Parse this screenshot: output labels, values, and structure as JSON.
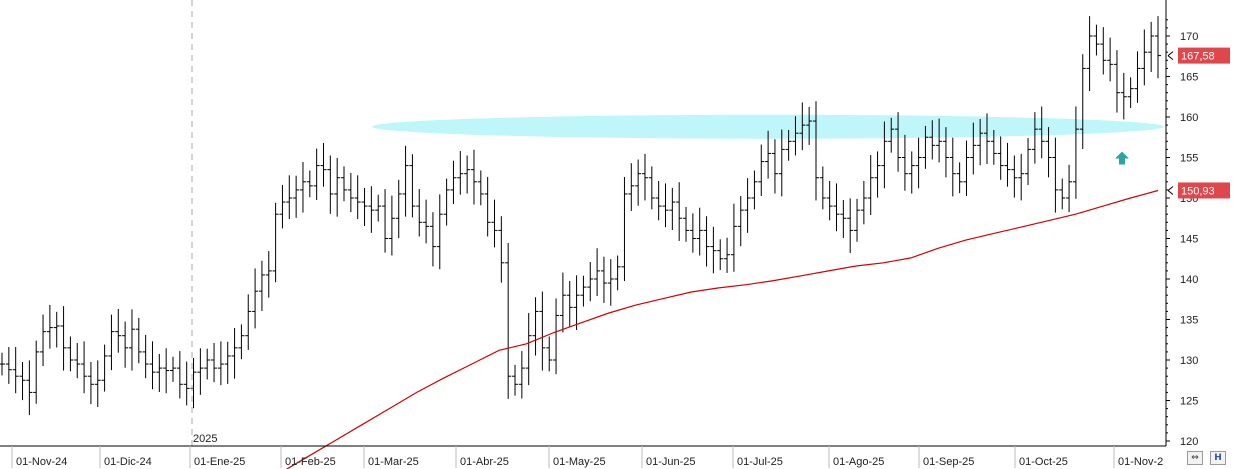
{
  "chart_data": {
    "type": "ohlc",
    "ylim": [
      120,
      174
    ],
    "y_ticks": [
      120,
      125,
      130,
      135,
      140,
      145,
      150,
      155,
      160,
      165,
      170
    ],
    "x_ticks": [
      "01-Nov-24",
      "01-Dic-24",
      "01-Ene-25",
      "01-Feb-25",
      "01-Mar-25",
      "01-Abr-25",
      "01-May-25",
      "01-Jun-25",
      "01-Jul-25",
      "01-Ago-25",
      "01-Sep-25",
      "01-Oct-25",
      "01-Nov-2"
    ],
    "year_marker": "2025",
    "last_price": "167,58",
    "ma_last": "150,93",
    "price_bars_close": [
      129.5,
      128.8,
      128.0,
      127.5,
      126.0,
      131.0,
      133.5,
      134.0,
      134.2,
      131.5,
      130.0,
      129.5,
      128.0,
      127.0,
      127.5,
      130.5,
      133.5,
      133.0,
      131.5,
      133.8,
      131.0,
      129.5,
      128.5,
      129.0,
      128.7,
      129.0,
      127.0,
      126.5,
      128.5,
      129.0,
      130.0,
      129.0,
      129.5,
      130.5,
      131.5,
      133.0,
      136.0,
      138.5,
      140.5,
      141.0,
      148.0,
      149.5,
      150.0,
      151.0,
      152.0,
      151.5,
      154.0,
      153.5,
      150.5,
      152.5,
      151.0,
      150.0,
      149.5,
      149.0,
      148.5,
      149.0,
      145.0,
      147.5,
      150.5,
      154.0,
      149.0,
      147.0,
      146.5,
      144.0,
      148.0,
      151.0,
      152.5,
      153.0,
      153.5,
      152.0,
      150.5,
      147.0,
      146.0,
      142.0,
      128.0,
      127.0,
      129.0,
      133.0,
      136.0,
      131.5,
      130.0,
      135.5,
      138.0,
      136.5,
      138.0,
      139.0,
      140.0,
      141.0,
      139.5,
      140.0,
      141.5,
      150.5,
      151.5,
      153.0,
      152.5,
      150.0,
      149.0,
      148.5,
      149.5,
      147.5,
      146.0,
      145.0,
      146.0,
      144.0,
      143.5,
      142.5,
      143.0,
      146.5,
      148.5,
      150.0,
      152.0,
      154.5,
      155.5,
      153.0,
      156.0,
      157.0,
      158.0,
      159.0,
      159.5,
      152.5,
      150.0,
      149.0,
      148.0,
      147.5,
      146.0,
      148.5,
      150.0,
      152.5,
      154.0,
      157.0,
      158.5,
      155.0,
      153.0,
      154.0,
      155.0,
      157.5,
      156.5,
      157.0,
      155.0,
      153.0,
      152.0,
      155.0,
      156.5,
      158.0,
      157.0,
      155.5,
      154.0,
      153.5,
      152.5,
      153.0,
      156.0,
      158.5,
      157.0,
      155.0,
      151.0,
      150.0,
      152.0,
      158.5,
      166.0,
      170.0,
      169.0,
      167.0,
      166.5,
      163.0,
      162.5,
      163.5,
      166.0,
      168.0,
      170.0,
      167.58
    ],
    "ma_values": [
      114.0,
      116.0,
      118.0,
      120.0,
      122.0,
      124.0,
      126.0,
      127.8,
      129.5,
      131.2,
      132.0,
      133.4,
      134.6,
      135.8,
      136.8,
      137.6,
      138.4,
      138.9,
      139.3,
      139.8,
      140.4,
      141.0,
      141.6,
      142.0,
      142.6,
      143.8,
      144.8,
      145.6,
      146.4,
      147.2,
      148.0,
      149.0,
      150.0,
      150.93
    ]
  },
  "colors": {
    "price_bar": "#000000",
    "moving_average": "#d40000",
    "band_fill": "#bff6fa",
    "price_tag_bg": "#e0474c",
    "signal_arrow": "#2aa5a0",
    "axis_line": "#000000",
    "grid_dash": "#a8a8a8"
  },
  "icons": {
    "arrow_icon": "up-arrow-signal",
    "scroll_btn": "double-arrow-icon",
    "save_btn": "floppy-icon"
  }
}
